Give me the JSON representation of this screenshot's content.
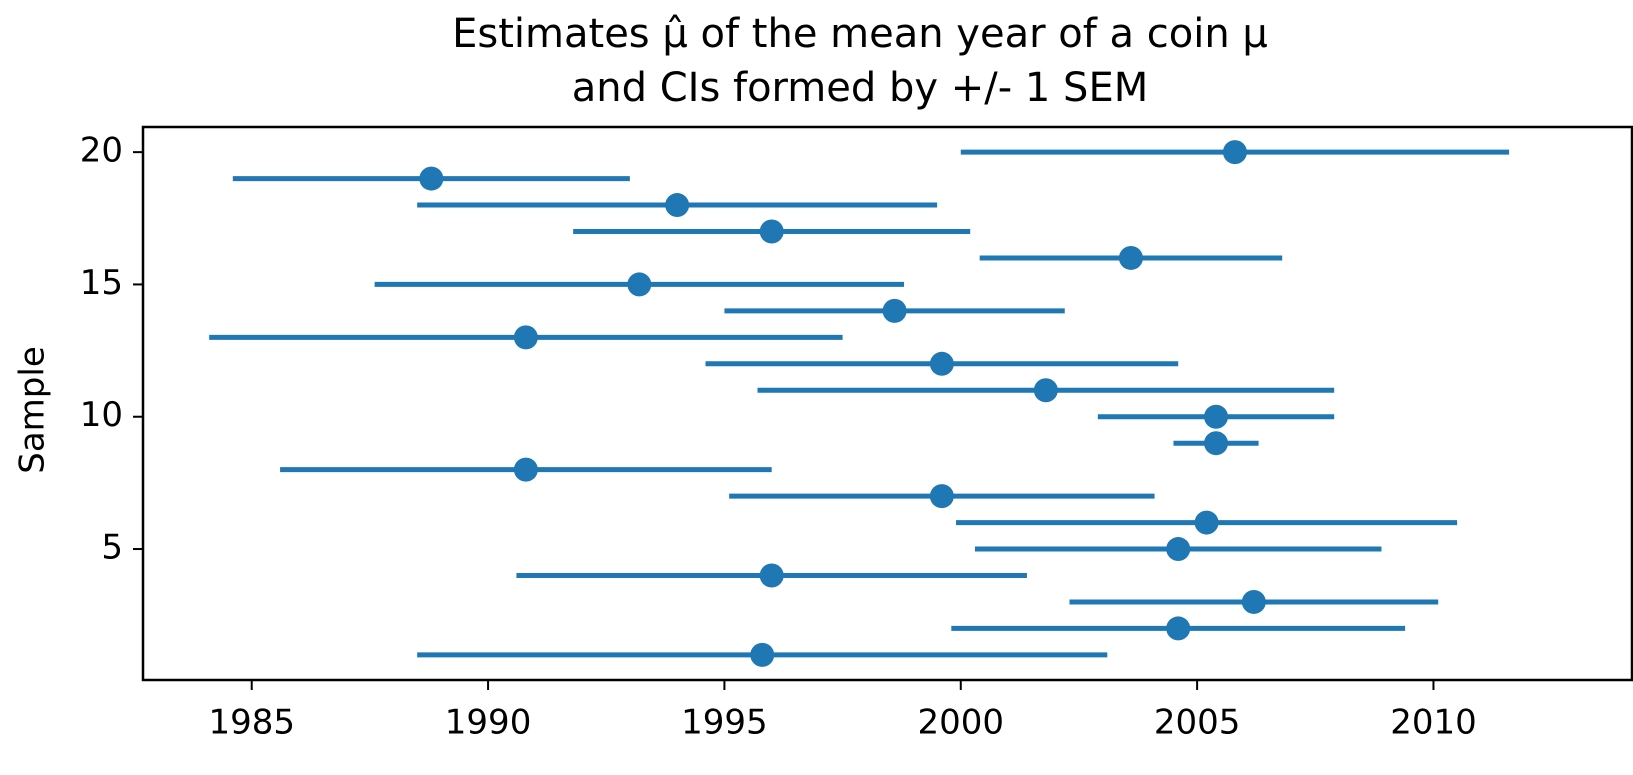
{
  "chart_data": {
    "type": "errorbar",
    "title": [
      "Estimates μ̂ of the mean year of a coin μ",
      "and CIs formed by +/- 1 SEM"
    ],
    "ylabel": "Sample",
    "color": "#1f77b4",
    "y": [
      1,
      2,
      3,
      4,
      5,
      6,
      7,
      8,
      9,
      10,
      11,
      12,
      13,
      14,
      15,
      16,
      17,
      18,
      19,
      20
    ],
    "values": [
      1995.8,
      2004.6,
      2006.2,
      1996.0,
      2004.6,
      2005.2,
      1999.6,
      1990.8,
      2005.4,
      2005.4,
      2001.8,
      1999.6,
      1990.8,
      1998.6,
      1993.2,
      2003.6,
      1996.0,
      1994.0,
      1988.8,
      2005.8
    ],
    "xerr": [
      7.3,
      4.8,
      3.9,
      5.4,
      4.3,
      5.3,
      4.5,
      5.2,
      0.9,
      2.5,
      6.1,
      5.0,
      6.7,
      3.6,
      5.6,
      3.2,
      4.2,
      5.5,
      4.2,
      5.8
    ],
    "xlim": [
      1982.7,
      2014.2
    ],
    "ylim": [
      0.05,
      20.95
    ],
    "xticks": [
      1985,
      1990,
      1995,
      2000,
      2005,
      2010
    ],
    "yticks": [
      5,
      10,
      15,
      20
    ]
  }
}
